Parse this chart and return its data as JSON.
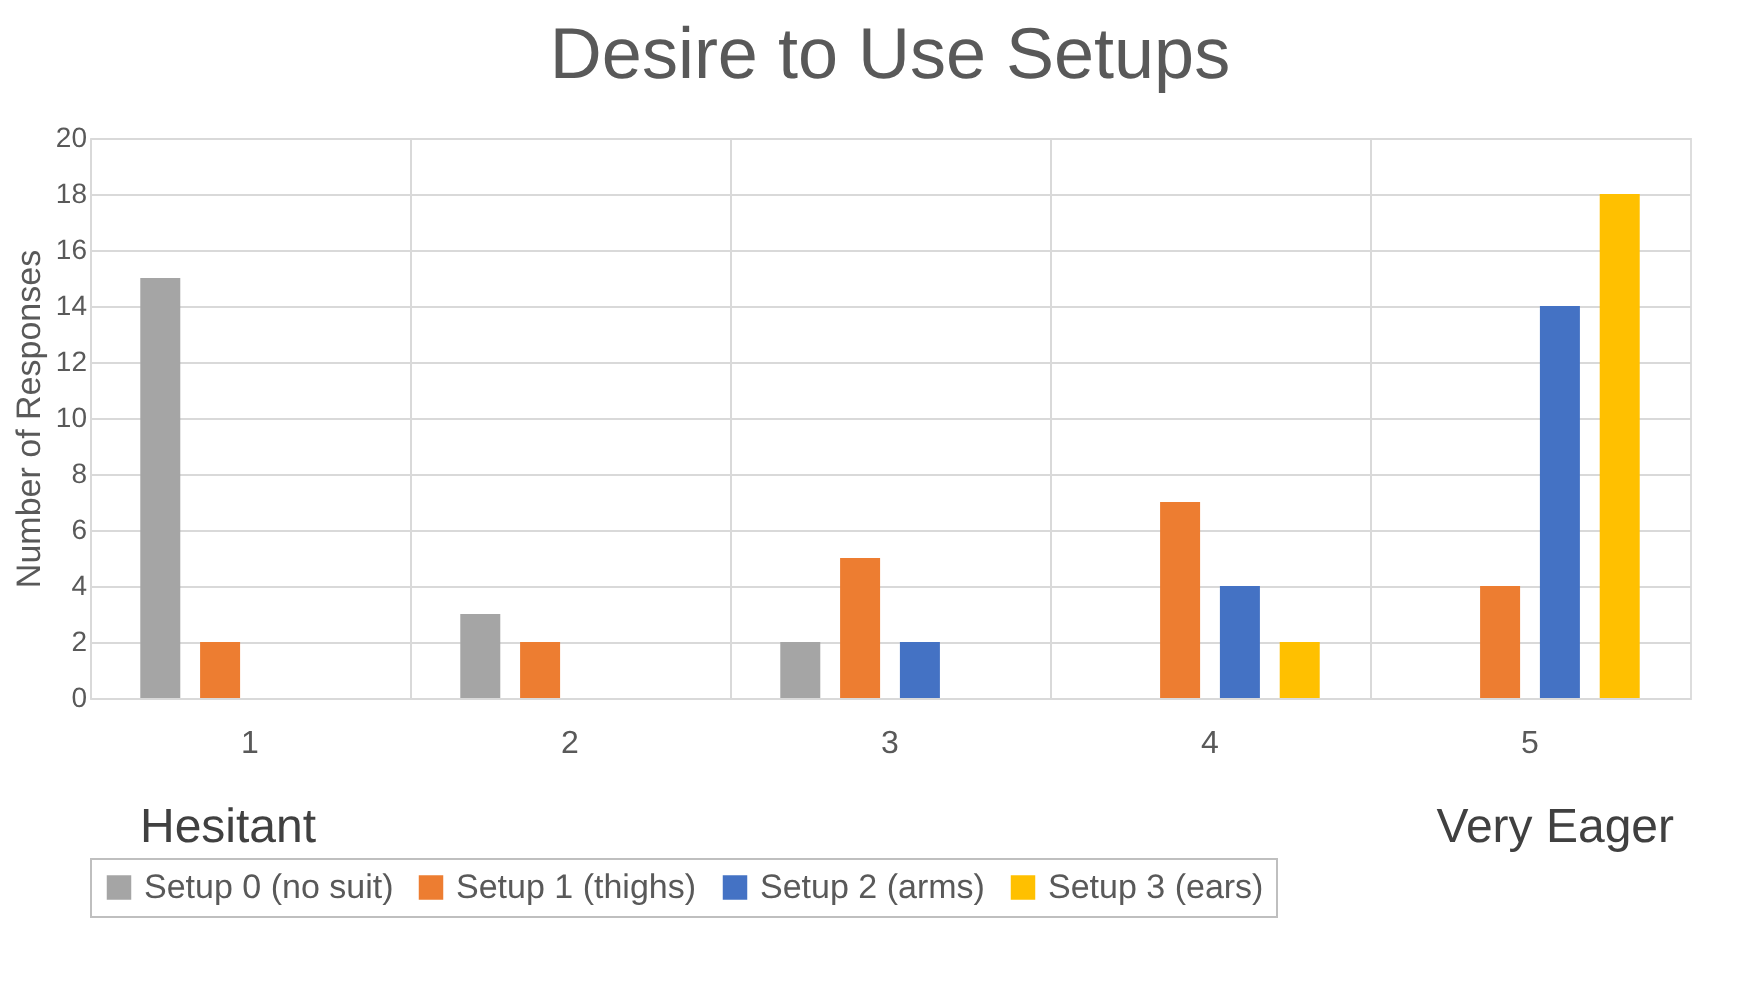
{
  "chart_data": {
    "type": "bar",
    "title": "Desire to Use Setups",
    "ylabel": "Number of Responses",
    "categories": [
      "1",
      "2",
      "3",
      "4",
      "5"
    ],
    "series": [
      {
        "name": "Setup 0 (no suit)",
        "color": "#a5a5a5",
        "values": [
          15,
          3,
          2,
          0,
          0
        ]
      },
      {
        "name": "Setup 1 (thighs)",
        "color": "#ed7d31",
        "values": [
          2,
          2,
          5,
          7,
          4
        ]
      },
      {
        "name": "Setup 2 (arms)",
        "color": "#4472c4",
        "values": [
          0,
          0,
          2,
          4,
          14
        ]
      },
      {
        "name": "Setup 3 (ears)",
        "color": "#ffc000",
        "values": [
          0,
          0,
          0,
          2,
          18
        ]
      }
    ],
    "ylim": [
      0,
      20
    ],
    "yticks": [
      0,
      2,
      4,
      6,
      8,
      10,
      12,
      14,
      16,
      18,
      20
    ],
    "grid": true,
    "legend": "bottom",
    "annotations": [
      "Hesitant",
      "Very Eager"
    ]
  }
}
